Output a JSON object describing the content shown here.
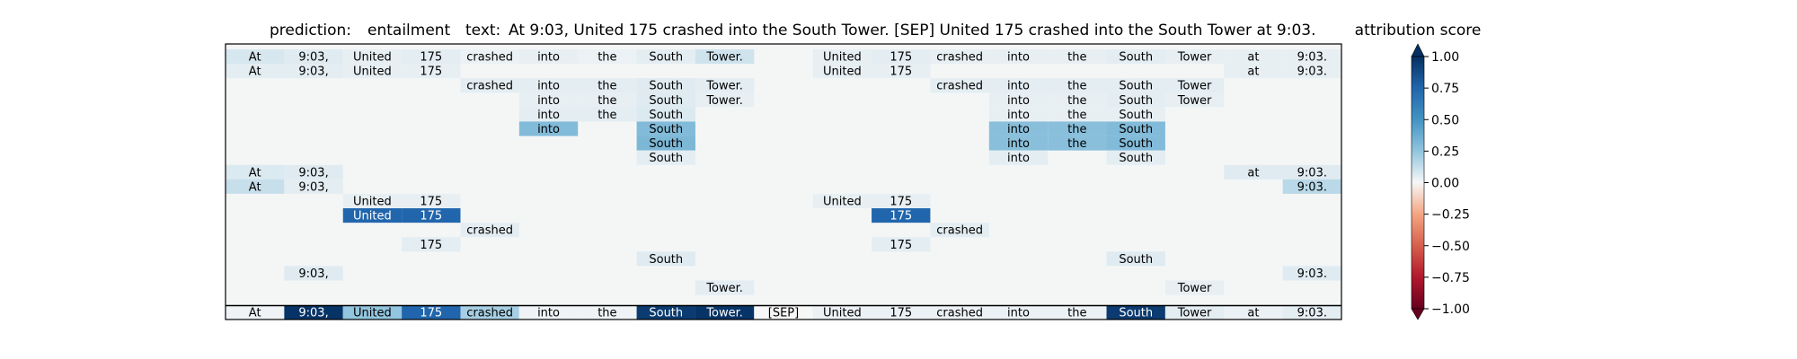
{
  "chart_data": {
    "type": "heatmap",
    "header": {
      "prediction_label": "prediction:",
      "prediction_value": "entailment",
      "text_label": "text:",
      "text_value": "At 9:03, United 175 crashed into the South Tower. [SEP] United 175 crashed into the South Tower at 9:03."
    },
    "tokens": [
      "At",
      "9:03,",
      "United",
      "175",
      "crashed",
      "into",
      "the",
      "South",
      "Tower.",
      "[SEP]",
      "United",
      "175",
      "crashed",
      "into",
      "the",
      "South",
      "Tower",
      "at",
      "9:03."
    ],
    "rows": [
      [
        0.08,
        0.06,
        0.04,
        0.05,
        0.03,
        0.04,
        0.03,
        0.05,
        0.1,
        null,
        0.04,
        0.05,
        0.04,
        0.04,
        0.04,
        0.05,
        0.04,
        0.04,
        0.04
      ],
      [
        0.05,
        0.05,
        0.04,
        0.04,
        null,
        null,
        null,
        null,
        null,
        null,
        0.04,
        0.04,
        null,
        null,
        null,
        null,
        null,
        0.04,
        0.04
      ],
      [
        null,
        null,
        null,
        null,
        0.05,
        0.05,
        0.05,
        0.06,
        0.05,
        null,
        null,
        null,
        0.05,
        0.05,
        0.05,
        0.05,
        0.05,
        null,
        null
      ],
      [
        null,
        null,
        null,
        null,
        null,
        0.04,
        0.04,
        0.06,
        0.04,
        null,
        null,
        null,
        null,
        0.04,
        0.04,
        0.05,
        0.04,
        null,
        null
      ],
      [
        null,
        null,
        null,
        null,
        null,
        0.05,
        0.05,
        0.07,
        null,
        null,
        null,
        null,
        null,
        0.04,
        0.04,
        0.04,
        null,
        null,
        null
      ],
      [
        null,
        null,
        null,
        null,
        null,
        0.3,
        null,
        0.3,
        null,
        null,
        null,
        null,
        null,
        0.28,
        0.28,
        0.3,
        null,
        null,
        null
      ],
      [
        null,
        null,
        null,
        null,
        null,
        null,
        null,
        0.32,
        null,
        null,
        null,
        null,
        null,
        0.28,
        0.28,
        0.3,
        null,
        null,
        null
      ],
      [
        null,
        null,
        null,
        null,
        null,
        null,
        null,
        0.05,
        null,
        null,
        null,
        null,
        null,
        0.05,
        null,
        0.05,
        null,
        null,
        null
      ],
      [
        0.07,
        0.06,
        null,
        null,
        null,
        null,
        null,
        null,
        null,
        null,
        null,
        null,
        null,
        null,
        null,
        null,
        null,
        0.06,
        0.06
      ],
      [
        0.12,
        0.05,
        null,
        null,
        null,
        null,
        null,
        null,
        null,
        null,
        null,
        null,
        null,
        null,
        null,
        null,
        null,
        null,
        0.15
      ],
      [
        null,
        null,
        0.04,
        0.04,
        null,
        null,
        null,
        null,
        null,
        null,
        0.04,
        0.04,
        null,
        null,
        null,
        null,
        null,
        null,
        null
      ],
      [
        null,
        null,
        0.75,
        0.75,
        null,
        null,
        null,
        null,
        null,
        null,
        null,
        0.75,
        null,
        null,
        null,
        null,
        null,
        null,
        null
      ],
      [
        null,
        null,
        null,
        null,
        0.05,
        null,
        null,
        null,
        null,
        null,
        null,
        null,
        0.05,
        null,
        null,
        null,
        null,
        null,
        null
      ],
      [
        null,
        null,
        null,
        0.05,
        null,
        null,
        null,
        null,
        null,
        null,
        null,
        0.05,
        null,
        null,
        null,
        null,
        null,
        null,
        null
      ],
      [
        null,
        null,
        null,
        null,
        null,
        null,
        null,
        0.06,
        null,
        null,
        null,
        null,
        null,
        null,
        null,
        0.06,
        null,
        null,
        null
      ],
      [
        null,
        0.06,
        null,
        null,
        null,
        null,
        null,
        null,
        null,
        null,
        null,
        null,
        null,
        null,
        null,
        null,
        null,
        null,
        0.06
      ],
      [
        null,
        null,
        null,
        null,
        null,
        null,
        null,
        null,
        0.05,
        null,
        null,
        null,
        null,
        null,
        null,
        null,
        0.04,
        null,
        null
      ]
    ],
    "summary_row": [
      0.02,
      0.98,
      0.25,
      0.75,
      0.2,
      0.02,
      0.02,
      0.95,
      0.98,
      0.0,
      0.03,
      0.03,
      0.03,
      0.03,
      0.03,
      0.95,
      0.05,
      0.03,
      0.05
    ],
    "colorbar": {
      "title": "attribution score",
      "range": [
        -1.0,
        1.0
      ],
      "ticks": [
        "1.00",
        "0.75",
        "0.50",
        "0.25",
        "0.00",
        "−0.25",
        "−0.50",
        "−0.75",
        "−1.00"
      ],
      "colormap": "RdBu"
    }
  }
}
